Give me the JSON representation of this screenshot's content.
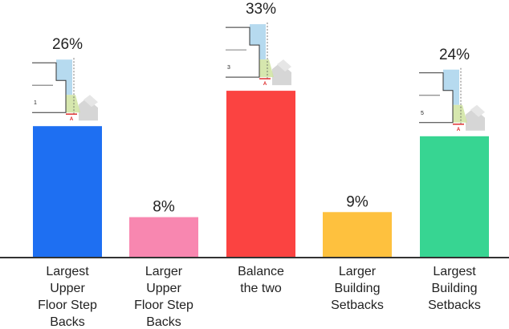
{
  "chart_data": {
    "type": "bar",
    "categories": [
      [
        "Largest",
        "Upper",
        "Floor Step",
        "Backs"
      ],
      [
        "Larger",
        "Upper",
        "Floor Step",
        "Backs"
      ],
      [
        "Balance",
        "the two"
      ],
      [
        "Larger",
        "Building",
        "Setbacks"
      ],
      [
        "Largest",
        "Building",
        "Setbacks"
      ]
    ],
    "values": [
      26,
      8,
      33,
      9,
      24
    ],
    "value_labels": [
      "26%",
      "8%",
      "33%",
      "9%",
      "24%"
    ],
    "colors": [
      "#1e6ff2",
      "#f887b0",
      "#fb4341",
      "#fec13e",
      "#37d592"
    ],
    "thumbnails": [
      {
        "bar": 0,
        "number": "1",
        "marker": "A"
      },
      {
        "bar": 2,
        "number": "3",
        "marker": "A"
      },
      {
        "bar": 4,
        "number": "5",
        "marker": "A"
      }
    ],
    "ylim": [
      0,
      40
    ],
    "grid": false,
    "legend": "none"
  }
}
